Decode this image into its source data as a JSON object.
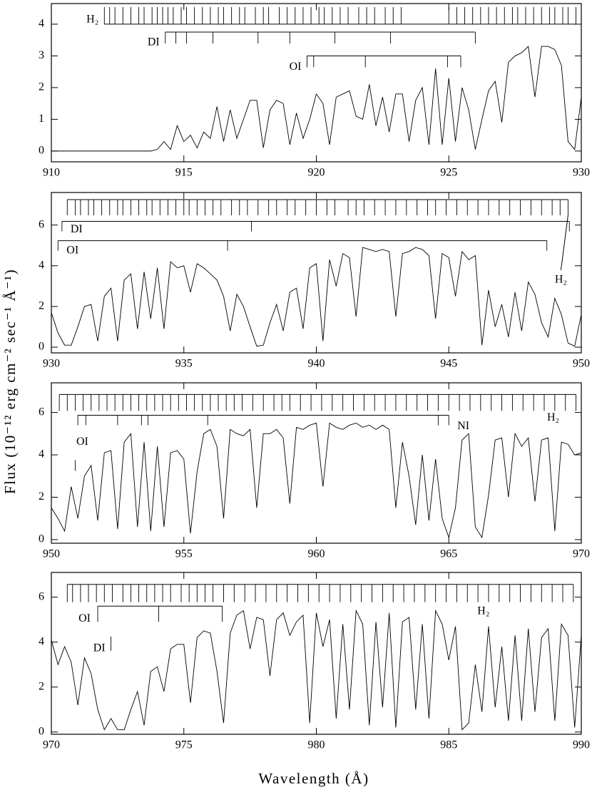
{
  "ylabel": "Flux (10⁻¹² erg cm⁻² sec⁻¹ Å⁻¹)",
  "xlabel": "Wavelength (Å)",
  "chart_data": [
    {
      "type": "line",
      "color": "#000000",
      "xlim": [
        910,
        930
      ],
      "ylim": [
        -0.34,
        4.65
      ],
      "xticks": [
        910,
        915,
        920,
        925,
        930
      ],
      "yticks": [
        0,
        1,
        2,
        3,
        4
      ],
      "x": [
        910,
        910.25,
        910.5,
        910.75,
        911,
        911.25,
        911.5,
        911.75,
        912,
        912.25,
        912.5,
        912.75,
        913,
        913.25,
        913.5,
        913.75,
        914,
        914.25,
        914.5,
        914.75,
        915,
        915.25,
        915.5,
        915.75,
        916,
        916.25,
        916.5,
        916.75,
        917,
        917.25,
        917.5,
        917.75,
        918,
        918.25,
        918.5,
        918.75,
        919,
        919.25,
        919.5,
        919.75,
        920,
        920.25,
        920.5,
        920.75,
        921,
        921.25,
        921.5,
        921.75,
        922,
        922.25,
        922.5,
        922.75,
        923,
        923.25,
        923.5,
        923.75,
        924,
        924.25,
        924.5,
        924.75,
        925,
        925.25,
        925.5,
        925.75,
        926,
        926.25,
        926.5,
        926.75,
        927,
        927.25,
        927.5,
        927.75,
        928,
        928.25,
        928.5,
        928.75,
        929,
        929.25,
        929.5,
        929.75,
        930
      ],
      "values": [
        0,
        0,
        0,
        0,
        0,
        0,
        0,
        0,
        0,
        0,
        0,
        0,
        0,
        0,
        0,
        0,
        0.05,
        0.3,
        0.05,
        0.8,
        0.3,
        0.5,
        0.1,
        0.6,
        0.4,
        1.4,
        0.3,
        1.3,
        0.4,
        1.0,
        1.6,
        1.6,
        0.1,
        1.3,
        1.6,
        1.5,
        0.2,
        1.2,
        0.4,
        1.0,
        1.8,
        1.5,
        0.2,
        1.7,
        1.8,
        1.9,
        1.1,
        1.0,
        2.1,
        0.8,
        1.7,
        0.6,
        1.8,
        1.8,
        0.3,
        1.6,
        2.0,
        0.2,
        2.6,
        0.2,
        2.3,
        0.3,
        2.0,
        1.3,
        0.05,
        1.0,
        1.9,
        2.2,
        0.9,
        2.8,
        3.0,
        3.1,
        3.3,
        1.7,
        3.3,
        3.3,
        3.2,
        2.7,
        0.3,
        0.05,
        1.7
      ],
      "line_ids": [
        {
          "label": "H₂",
          "ticks": "up",
          "level": 4.0,
          "lines": [
            912.0,
            912.2,
            912.4,
            912.7,
            913.0,
            913.3,
            913.5,
            913.8,
            914.0,
            914.2,
            914.4,
            914.6,
            914.9,
            915.1,
            915.4,
            915.7,
            916.0,
            916.3,
            916.5,
            916.8,
            917.1,
            917.3,
            917.7,
            918.0,
            918.2,
            918.6,
            918.9,
            919.2,
            919.5,
            919.8,
            920.1,
            920.3,
            920.6,
            920.9,
            921.2,
            921.6,
            921.9,
            922.2,
            922.6,
            922.9,
            923.2,
            925.0,
            925.3,
            925.6,
            925.9,
            926.2,
            926.5,
            926.8,
            927.1,
            927.4,
            927.6,
            927.9,
            928.2,
            928.5,
            928.8,
            929.0,
            929.3,
            929.5,
            929.8
          ]
        },
        {
          "label": "DI",
          "ticks": "down",
          "level": 3.75,
          "lines": [
            914.3,
            914.7,
            915.1,
            916.1,
            917.8,
            919.0,
            920.7,
            922.8,
            926.0
          ]
        },
        {
          "label": "OI",
          "ticks": "down",
          "level": 3.0,
          "lines": [
            919.65,
            919.9,
            921.85,
            924.95,
            925.45
          ]
        }
      ]
    },
    {
      "type": "line",
      "color": "#000000",
      "xlim": [
        930,
        950
      ],
      "ylim": [
        -0.28,
        7.6
      ],
      "xticks": [
        930,
        935,
        940,
        945,
        950
      ],
      "yticks": [
        0,
        2,
        4,
        6
      ],
      "x": [
        930,
        930.25,
        930.5,
        930.75,
        931,
        931.25,
        931.5,
        931.75,
        932,
        932.25,
        932.5,
        932.75,
        933,
        933.25,
        933.5,
        933.75,
        934,
        934.25,
        934.5,
        934.75,
        935,
        935.25,
        935.5,
        935.75,
        936,
        936.25,
        936.5,
        936.75,
        937,
        937.25,
        937.5,
        937.75,
        938,
        938.25,
        938.5,
        938.75,
        939,
        939.25,
        939.5,
        939.75,
        940,
        940.25,
        940.5,
        940.75,
        941,
        941.25,
        941.5,
        941.75,
        942,
        942.25,
        942.5,
        942.75,
        943,
        943.25,
        943.5,
        943.75,
        944,
        944.25,
        944.5,
        944.75,
        945,
        945.25,
        945.5,
        945.75,
        946,
        946.25,
        946.5,
        946.75,
        947,
        947.25,
        947.5,
        947.75,
        948,
        948.25,
        948.5,
        948.75,
        949,
        949.25,
        949.5,
        949.75,
        950
      ],
      "values": [
        1.7,
        0.7,
        0.1,
        0.1,
        1.0,
        2.0,
        2.1,
        0.3,
        2.5,
        2.9,
        0.3,
        3.3,
        3.6,
        0.9,
        3.7,
        1.4,
        3.9,
        0.9,
        4.2,
        3.9,
        4.0,
        2.7,
        4.1,
        3.9,
        3.6,
        3.3,
        2.5,
        0.8,
        2.6,
        2.0,
        1.0,
        0.05,
        0.1,
        1.2,
        2.1,
        0.8,
        2.7,
        2.9,
        0.9,
        3.9,
        4.1,
        0.3,
        4.3,
        3.0,
        4.6,
        4.4,
        1.5,
        4.9,
        4.8,
        4.7,
        4.8,
        4.7,
        1.5,
        4.6,
        4.7,
        4.9,
        4.8,
        4.5,
        1.4,
        4.6,
        4.4,
        2.5,
        4.7,
        4.3,
        4.5,
        0.1,
        2.8,
        1.0,
        2.1,
        0.5,
        2.7,
        0.8,
        3.2,
        2.6,
        1.2,
        0.5,
        2.4,
        1.6,
        0.2,
        0.05,
        1.6
      ],
      "line_ids": [
        {
          "label": "H₂",
          "ticks": "down",
          "level": 7.25,
          "lines": [
            930.6,
            930.9,
            931.1,
            931.4,
            931.6,
            931.9,
            932.2,
            932.5,
            932.7,
            933.0,
            933.3,
            933.6,
            933.8,
            934.1,
            934.4,
            934.7,
            935.0,
            935.2,
            935.5,
            935.8,
            936.1,
            936.4,
            936.8,
            937.1,
            937.4,
            937.8,
            938.2,
            938.5,
            938.9,
            939.2,
            939.6,
            940.0,
            940.4,
            940.7,
            941.2,
            941.5,
            941.8,
            942.2,
            942.6,
            943.0,
            943.4,
            943.8,
            944.2,
            944.5,
            944.9,
            945.3,
            945.7,
            946.1,
            946.5,
            946.9,
            947.3,
            947.7,
            948.1,
            948.5,
            948.9,
            949.2,
            949.5
          ]
        },
        {
          "label": "DI",
          "ticks": "down",
          "level": 6.18,
          "lines": [
            930.4,
            937.55,
            949.55
          ]
        },
        {
          "label": "OI",
          "ticks": "down",
          "level": 5.23,
          "lines": [
            930.25,
            936.65,
            948.7
          ]
        }
      ]
    },
    {
      "type": "line",
      "color": "#000000",
      "xlim": [
        950,
        970
      ],
      "ylim": [
        -0.17,
        7.4
      ],
      "xticks": [
        950,
        955,
        960,
        965,
        970
      ],
      "yticks": [
        0,
        2,
        4,
        6
      ],
      "x": [
        950,
        950.25,
        950.5,
        950.75,
        951,
        951.25,
        951.5,
        951.75,
        952,
        952.25,
        952.5,
        952.75,
        953,
        953.25,
        953.5,
        953.75,
        954,
        954.25,
        954.5,
        954.75,
        955,
        955.25,
        955.5,
        955.75,
        956,
        956.25,
        956.5,
        956.75,
        957,
        957.25,
        957.5,
        957.75,
        958,
        958.25,
        958.5,
        958.75,
        959,
        959.25,
        959.5,
        959.75,
        960,
        960.25,
        960.5,
        960.75,
        961,
        961.25,
        961.5,
        961.75,
        962,
        962.25,
        962.5,
        962.75,
        963,
        963.25,
        963.5,
        963.75,
        964,
        964.25,
        964.5,
        964.75,
        965,
        965.25,
        965.5,
        965.75,
        966,
        966.25,
        966.5,
        966.75,
        967,
        967.25,
        967.5,
        967.75,
        968,
        968.25,
        968.5,
        968.75,
        969,
        969.25,
        969.5,
        969.75,
        970
      ],
      "values": [
        1.5,
        1.0,
        0.4,
        2.5,
        1.0,
        3.0,
        3.5,
        0.9,
        4.1,
        4.2,
        0.5,
        4.6,
        5.0,
        0.6,
        4.6,
        0.4,
        4.4,
        0.6,
        4.1,
        4.2,
        3.8,
        0.3,
        3.2,
        5.0,
        5.2,
        4.4,
        1.0,
        5.2,
        5.0,
        4.9,
        5.2,
        1.5,
        5.0,
        5.0,
        5.2,
        4.8,
        1.7,
        5.3,
        5.2,
        5.4,
        5.5,
        2.5,
        5.5,
        5.3,
        5.2,
        5.4,
        5.5,
        5.3,
        5.4,
        5.2,
        5.4,
        5.2,
        1.5,
        4.6,
        3.0,
        0.7,
        4.0,
        0.9,
        3.8,
        1.0,
        0.1,
        1.5,
        4.7,
        5.0,
        0.6,
        0.1,
        2.1,
        4.7,
        4.8,
        2.0,
        5.0,
        4.4,
        4.8,
        1.8,
        4.7,
        4.8,
        0.4,
        4.6,
        4.5,
        4.0,
        4.1
      ],
      "line_ids": [
        {
          "label": "H₂",
          "ticks": "down",
          "level": 6.85,
          "lines": [
            950.3,
            950.6,
            950.9,
            951.2,
            951.5,
            951.8,
            952.1,
            952.4,
            952.7,
            953.0,
            953.3,
            953.6,
            953.9,
            954.2,
            954.5,
            954.8,
            955.1,
            955.4,
            955.7,
            956.0,
            956.3,
            956.6,
            956.9,
            957.2,
            957.6,
            958.0,
            958.4,
            958.7,
            959.0,
            959.4,
            959.8,
            960.2,
            960.6,
            961.0,
            961.4,
            961.8,
            962.2,
            962.6,
            963.0,
            963.4,
            963.8,
            964.2,
            964.6,
            965.0,
            965.4,
            965.8,
            966.2,
            966.6,
            967.0,
            967.4,
            967.8,
            968.2,
            968.6,
            969.0,
            969.4,
            969.8
          ]
        },
        {
          "label": "OI",
          "ticks": "down",
          "level": 3.75,
          "lines": [
            950.9
          ]
        },
        {
          "label": "NI",
          "ticks": "down",
          "level": 5.87,
          "lines": [
            951.0,
            951.3,
            952.5,
            953.4,
            953.65,
            955.9,
            964.6,
            965.0
          ]
        }
      ]
    },
    {
      "type": "line",
      "color": "#000000",
      "xlim": [
        970,
        990
      ],
      "ylim": [
        -0.1,
        7.1
      ],
      "xticks": [
        970,
        975,
        980,
        985,
        990
      ],
      "yticks": [
        0,
        2,
        4,
        6
      ],
      "x": [
        970,
        970.25,
        970.5,
        970.75,
        971,
        971.25,
        971.5,
        971.75,
        972,
        972.25,
        972.5,
        972.75,
        973,
        973.25,
        973.5,
        973.75,
        974,
        974.25,
        974.5,
        974.75,
        975,
        975.25,
        975.5,
        975.75,
        976,
        976.25,
        976.5,
        976.75,
        977,
        977.25,
        977.5,
        977.75,
        978,
        978.25,
        978.5,
        978.75,
        979,
        979.25,
        979.5,
        979.75,
        980,
        980.25,
        980.5,
        980.75,
        981,
        981.25,
        981.5,
        981.75,
        982,
        982.25,
        982.5,
        982.75,
        983,
        983.25,
        983.5,
        983.75,
        984,
        984.25,
        984.5,
        984.75,
        985,
        985.25,
        985.5,
        985.75,
        986,
        986.25,
        986.5,
        986.75,
        987,
        987.25,
        987.5,
        987.75,
        988,
        988.25,
        988.5,
        988.75,
        989,
        989.25,
        989.5,
        989.75,
        990
      ],
      "values": [
        4.1,
        3.0,
        3.8,
        3.1,
        1.2,
        3.3,
        2.6,
        1.0,
        0.1,
        0.6,
        0.1,
        0.1,
        1.0,
        1.8,
        0.3,
        2.7,
        2.9,
        1.8,
        3.7,
        3.9,
        3.9,
        1.3,
        4.2,
        4.5,
        4.4,
        2.7,
        0.4,
        4.4,
        5.2,
        5.4,
        3.7,
        5.1,
        5.0,
        2.5,
        5.0,
        5.3,
        4.3,
        4.9,
        5.2,
        0.4,
        5.3,
        3.8,
        5.0,
        0.6,
        4.8,
        1.0,
        5.4,
        4.8,
        0.3,
        4.9,
        1.1,
        5.3,
        0.2,
        4.9,
        5.1,
        1.0,
        4.8,
        0.6,
        5.4,
        4.8,
        3.2,
        4.7,
        0.1,
        0.4,
        3.0,
        0.9,
        4.7,
        1.1,
        3.8,
        0.5,
        4.3,
        0.5,
        4.6,
        0.9,
        4.2,
        4.6,
        0.5,
        4.8,
        4.3,
        0.2,
        4.3
      ],
      "line_ids": [
        {
          "label": "H₂",
          "ticks": "down",
          "level": 6.57,
          "lines": [
            970.6,
            970.8,
            971.1,
            971.4,
            971.7,
            972.0,
            972.3,
            972.7,
            973.0,
            973.3,
            973.6,
            973.9,
            974.2,
            974.5,
            974.9,
            975.2,
            975.5,
            975.8,
            976.1,
            976.5,
            976.9,
            977.3,
            977.7,
            978.1,
            978.5,
            978.9,
            979.3,
            979.7,
            980.1,
            980.5,
            980.9,
            981.3,
            981.7,
            982.1,
            982.5,
            982.9,
            983.3,
            983.7,
            984.1,
            984.5,
            984.9,
            985.3,
            985.7,
            986.1,
            986.5,
            986.9,
            987.3,
            987.7,
            988.1,
            988.5,
            988.9,
            989.3,
            989.7
          ]
        },
        {
          "label": "OI",
          "ticks": "down",
          "level": 5.6,
          "lines": [
            971.75,
            974.05,
            976.45
          ]
        },
        {
          "label": "DI",
          "ticks": "down",
          "level": 4.25,
          "lines": [
            972.25
          ]
        }
      ]
    }
  ]
}
